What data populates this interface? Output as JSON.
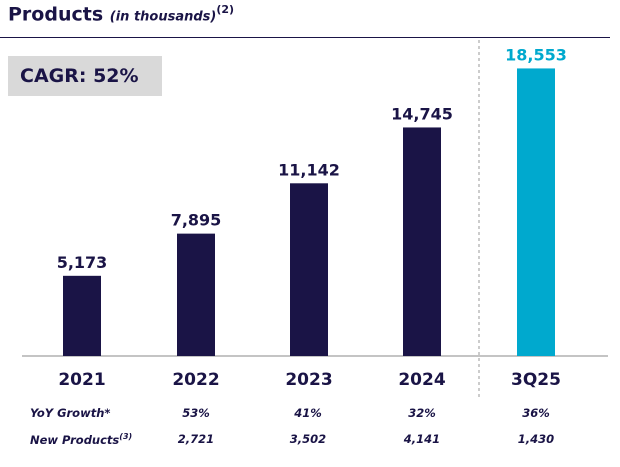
{
  "title": {
    "main": "Products",
    "sub": "(in thousands)",
    "note": "(2)"
  },
  "cagr_label": "CAGR: 52%",
  "colors": {
    "bar": "#1a1446",
    "highlight": "#00a9ce",
    "text": "#1a1446"
  },
  "chart_data": {
    "type": "bar",
    "title": "Products (in thousands)",
    "categories": [
      "2021",
      "2022",
      "2023",
      "2024",
      "3Q25"
    ],
    "values": [
      5173,
      7895,
      11142,
      14745,
      18553
    ],
    "value_labels": [
      "5,173",
      "7,895",
      "11,142",
      "14,745",
      "18,553"
    ],
    "highlight_index": 4,
    "ylim": [
      0,
      20000
    ],
    "xlabel": "",
    "ylabel": ""
  },
  "footer": {
    "rows": [
      {
        "label": "YoY Growth*",
        "label_note": "",
        "values": [
          "53%",
          "41%",
          "32%",
          "36%"
        ]
      },
      {
        "label": "New Products",
        "label_note": "(3)",
        "values": [
          "2,721",
          "3,502",
          "4,141",
          "1,430"
        ]
      }
    ]
  }
}
